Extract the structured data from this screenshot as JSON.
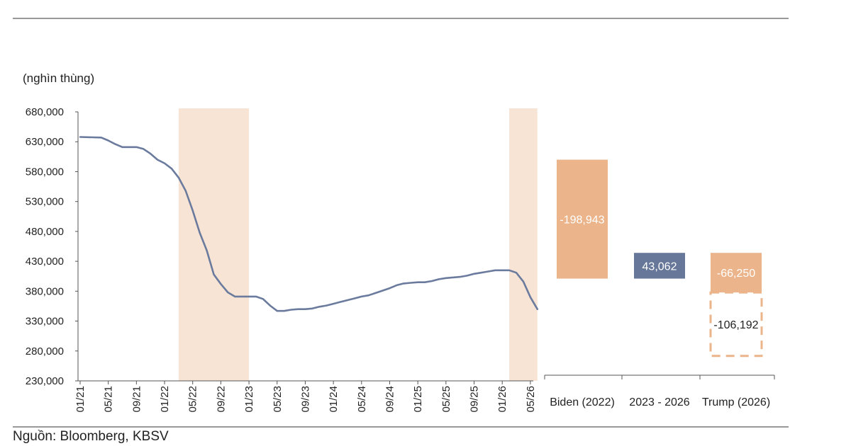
{
  "source": "Nguồn: Bloomberg, KBSV",
  "colors": {
    "line": "#6b7b9e",
    "shade": "#f7e4d4",
    "bar_orange": "#ebb48a",
    "bar_blue": "#667799",
    "axis": "#555555",
    "rule": "#333333"
  },
  "chart_data": [
    {
      "type": "line",
      "unit_label": "(nghìn thùng)",
      "y_ticks": [
        680000,
        630000,
        580000,
        530000,
        480000,
        430000,
        380000,
        330000,
        280000,
        230000
      ],
      "y_tick_labels": [
        "680,000",
        "630,000",
        "580,000",
        "530,000",
        "480,000",
        "430,000",
        "380,000",
        "330,000",
        "280,000",
        "230,000"
      ],
      "ylim": [
        230000,
        680000
      ],
      "x_tick_labels": [
        "01/21",
        "05/21",
        "09/21",
        "01/22",
        "05/22",
        "09/22",
        "01/23",
        "05/23",
        "09/23",
        "01/24",
        "05/24",
        "09/24",
        "01/25",
        "05/25",
        "09/25",
        "01/26",
        "05/26"
      ],
      "xlim": [
        "2021-01",
        "2026-06"
      ],
      "shaded_periods": [
        [
          "2022-03",
          "2023-01"
        ],
        [
          "2026-02",
          "2026-06"
        ]
      ],
      "series": [
        {
          "x": [
            "2021-01",
            "2021-04",
            "2021-05",
            "2021-06",
            "2021-07",
            "2021-09",
            "2021-10",
            "2021-11",
            "2021-12",
            "2022-01",
            "2022-02",
            "2022-03",
            "2022-04",
            "2022-05",
            "2022-06",
            "2022-07",
            "2022-08",
            "2022-09",
            "2022-10",
            "2022-11",
            "2022-12",
            "2023-01",
            "2023-02",
            "2023-03",
            "2023-04",
            "2023-05",
            "2023-06",
            "2023-07",
            "2023-08",
            "2023-09",
            "2023-10",
            "2023-11",
            "2023-12",
            "2024-01",
            "2024-02",
            "2024-03",
            "2024-04",
            "2024-05",
            "2024-06",
            "2024-07",
            "2024-08",
            "2024-09",
            "2024-10",
            "2024-11",
            "2024-12",
            "2025-01",
            "2025-02",
            "2025-03",
            "2025-04",
            "2025-05",
            "2025-06",
            "2025-07",
            "2025-08",
            "2025-09",
            "2025-10",
            "2025-11",
            "2025-12",
            "2026-01",
            "2026-02",
            "2026-03",
            "2026-04",
            "2026-05",
            "2026-06"
          ],
          "values": [
            638000,
            637000,
            632000,
            626000,
            621000,
            621000,
            618000,
            610000,
            600000,
            594000,
            585000,
            570000,
            548000,
            515000,
            478000,
            448000,
            408000,
            392000,
            378000,
            371000,
            371000,
            371000,
            371000,
            367000,
            356000,
            347000,
            347000,
            349000,
            350000,
            350000,
            351000,
            354000,
            356000,
            359000,
            362000,
            365000,
            368000,
            371000,
            373000,
            377000,
            381000,
            385000,
            390000,
            393000,
            394000,
            395000,
            395000,
            397000,
            400000,
            402000,
            403000,
            404000,
            406000,
            409000,
            411000,
            413000,
            415000,
            415000,
            415000,
            411000,
            396000,
            370000,
            350000
          ]
        }
      ]
    },
    {
      "type": "bar",
      "subtype": "waterfall",
      "categories": [
        "Biden (2022)",
        "2023 - 2026",
        "Trump (2026)"
      ],
      "bars": [
        {
          "category": "Biden (2022)",
          "value": -198943,
          "label": "-198,943",
          "from": 600000,
          "to": 401057,
          "style": "solid",
          "color": "#ebb48a"
        },
        {
          "category": "2023 - 2026",
          "value": 43062,
          "label": "43,062",
          "from": 401057,
          "to": 444119,
          "style": "solid",
          "color": "#667799"
        },
        {
          "category": "Trump (2026)",
          "value": -66250,
          "label": "-66,250",
          "from": 444119,
          "to": 377869,
          "style": "solid",
          "color": "#ebb48a"
        },
        {
          "category": "Trump (2026)",
          "value": -106192,
          "label": "-106,192",
          "from": 377869,
          "to": 271677,
          "style": "dashed",
          "color": "#ebb48a"
        }
      ]
    }
  ]
}
